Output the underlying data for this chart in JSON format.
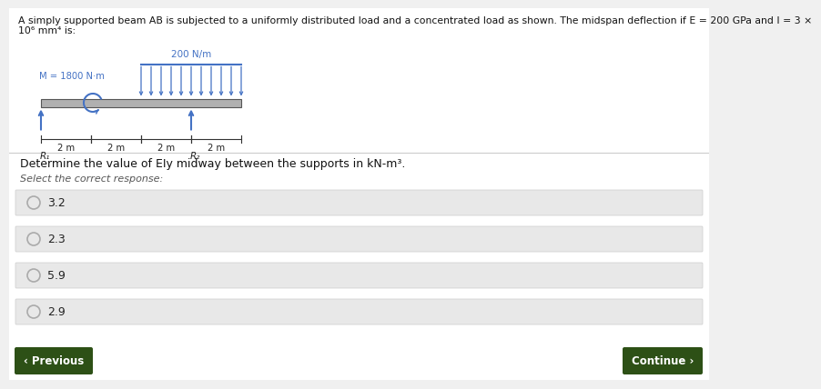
{
  "bg_color": "#f0f0f0",
  "white_bg": "#ffffff",
  "title_line1": "A simply supported beam AB is subjected to a uniformly distributed load and a concentrated load as shown. The midspan deflection if E = 200 GPa and I = 3 ×",
  "title_line2": "10⁶ mm⁴ is:",
  "question_text": "Determine the value of EIy midway between the supports in kN-m³.",
  "select_text": "Select the correct response:",
  "options": [
    "3.2",
    "2.3",
    "5.9",
    "2.9"
  ],
  "prev_button_text": "‹ Previous",
  "next_button_text": "Continue ›",
  "button_color": "#2d5016",
  "button_text_color": "#ffffff",
  "load_color": "#4472c4",
  "moment_label": "M = 1800 N·m",
  "udl_label": "200 N/m",
  "dim_labels": [
    "2 m",
    "2 m",
    "2 m",
    "2 m"
  ],
  "support_labels": [
    "R₁",
    "R₂"
  ],
  "option_bg": "#e8e8e8",
  "option_border": "#cccccc",
  "divider_color": "#cccccc",
  "text_color": "#111111",
  "select_color": "#555555"
}
